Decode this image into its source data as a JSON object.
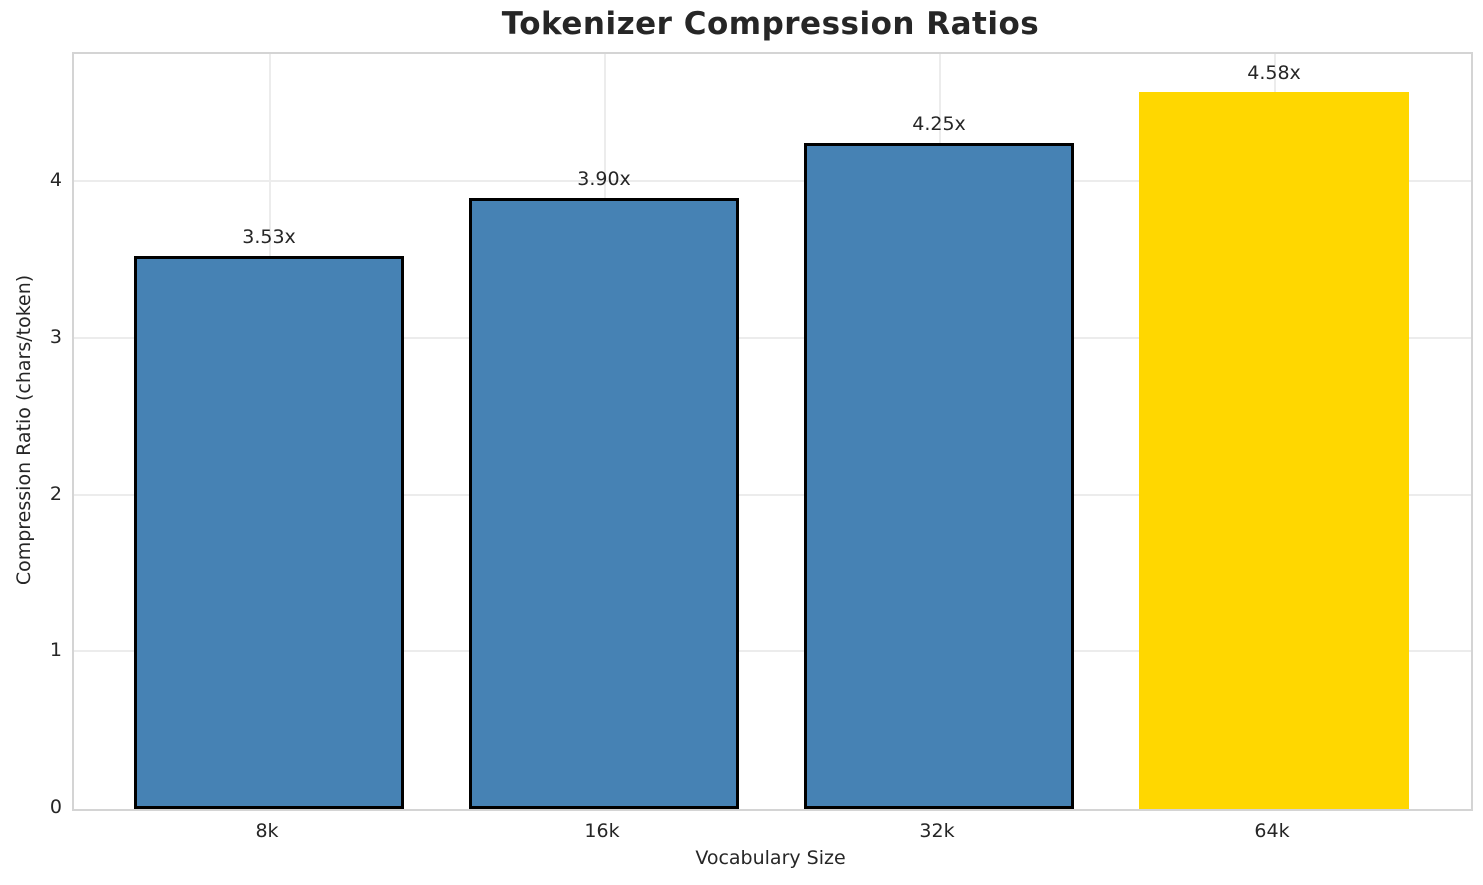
{
  "chart_data": {
    "type": "bar",
    "title": "Tokenizer Compression Ratios",
    "xlabel": "Vocabulary Size",
    "ylabel": "Compression Ratio (chars/token)",
    "categories": [
      "8k",
      "16k",
      "32k",
      "64k"
    ],
    "values": [
      3.53,
      3.9,
      4.25,
      4.58
    ],
    "bar_labels": [
      "3.53x",
      "3.90x",
      "4.25x",
      "4.58x"
    ],
    "yticks": [
      0,
      1,
      2,
      3,
      4
    ],
    "ylim": [
      0,
      4.82
    ],
    "grid": true,
    "legend": "none",
    "highlight_index": 3,
    "colors": {
      "bar_fill": "#4682b4",
      "bar_edge": "#000000",
      "highlight_fill": "#ffd700",
      "highlight_edge": "none",
      "text": "#262626",
      "gridline": "#ececec",
      "spine": "#d4d4d4",
      "background": "#ffffff"
    }
  }
}
